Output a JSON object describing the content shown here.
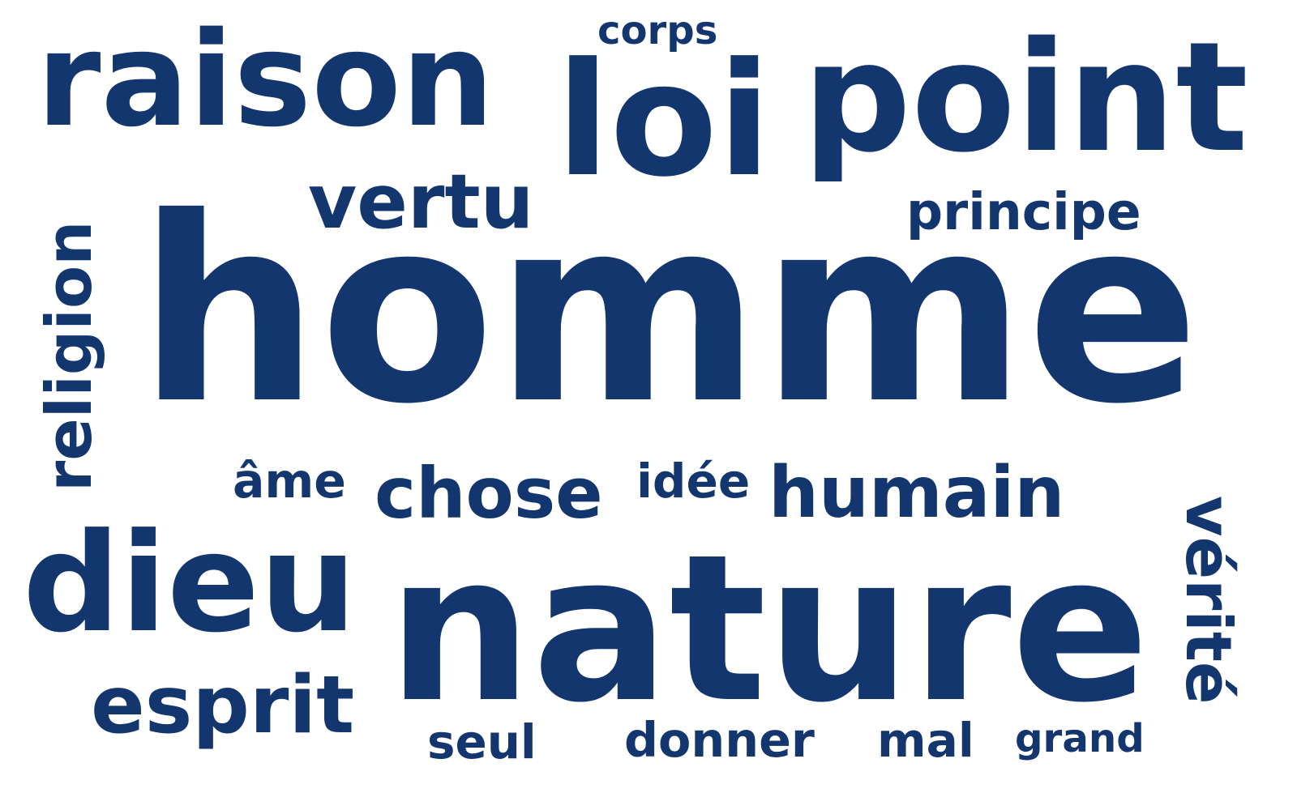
{
  "color": "#14366f",
  "words": [
    {
      "text": "homme"
    },
    {
      "text": "nature"
    },
    {
      "text": "dieu"
    },
    {
      "text": "loi"
    },
    {
      "text": "point"
    },
    {
      "text": "raison"
    },
    {
      "text": "humain"
    },
    {
      "text": "chose"
    },
    {
      "text": "vérité"
    },
    {
      "text": "religion"
    },
    {
      "text": "esprit"
    },
    {
      "text": "vertu"
    },
    {
      "text": "principe"
    },
    {
      "text": "âme"
    },
    {
      "text": "idée"
    },
    {
      "text": "corps"
    },
    {
      "text": "seul"
    },
    {
      "text": "donner"
    },
    {
      "text": "mal"
    },
    {
      "text": "grand"
    }
  ]
}
